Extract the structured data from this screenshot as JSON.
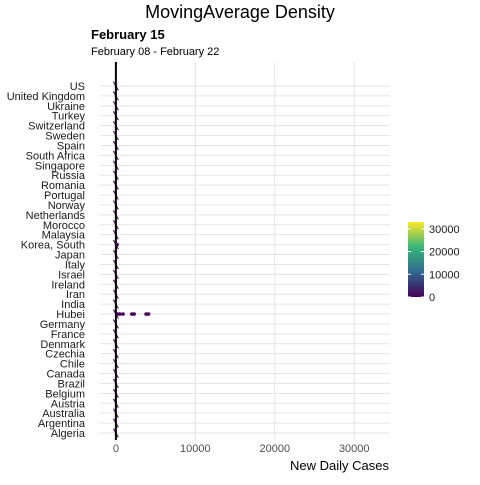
{
  "chart_data": {
    "type": "heatmap",
    "title": "MovingAverage Density",
    "subtitle": "February 15",
    "caption": "February 08 - February 22",
    "xlabel": "New Daily Cases",
    "ylabel": "",
    "xlim": [
      -2000,
      34500
    ],
    "x_ticks": [
      0,
      10000,
      20000,
      30000
    ],
    "x_tick_labels": [
      "0",
      "10000",
      "20000",
      "30000"
    ],
    "categories": [
      "Algeria",
      "Argentina",
      "Australia",
      "Austria",
      "Belgium",
      "Brazil",
      "Canada",
      "Chile",
      "Czechia",
      "Denmark",
      "France",
      "Germany",
      "Hubei",
      "India",
      "Iran",
      "Ireland",
      "Israel",
      "Italy",
      "Japan",
      "Korea, South",
      "Malaysia",
      "Morocco",
      "Netherlands",
      "Norway",
      "Portugal",
      "Romania",
      "Russia",
      "Singapore",
      "South Africa",
      "Spain",
      "Sweden",
      "Switzerland",
      "Turkey",
      "Ukraine",
      "United Kingdom",
      "US"
    ],
    "marker_x": 0,
    "grid": true,
    "legend": {
      "position": "right",
      "colors": [
        "#440154",
        "#31688e",
        "#35b779",
        "#fde725"
      ],
      "ticks": [
        0,
        10000,
        20000,
        30000
      ],
      "tick_labels": [
        "0",
        "10000",
        "20000",
        "30000"
      ],
      "range": [
        0,
        33000
      ]
    },
    "series": [
      {
        "category": "Hubei",
        "points": [
          [
            200,
            50
          ],
          [
            500,
            100
          ],
          [
            900,
            200
          ],
          [
            2000,
            300
          ],
          [
            2300,
            300
          ],
          [
            3800,
            600
          ],
          [
            4100,
            800
          ]
        ]
      },
      {
        "category": "Korea, South",
        "points": [
          [
            150,
            30
          ]
        ]
      }
    ]
  }
}
